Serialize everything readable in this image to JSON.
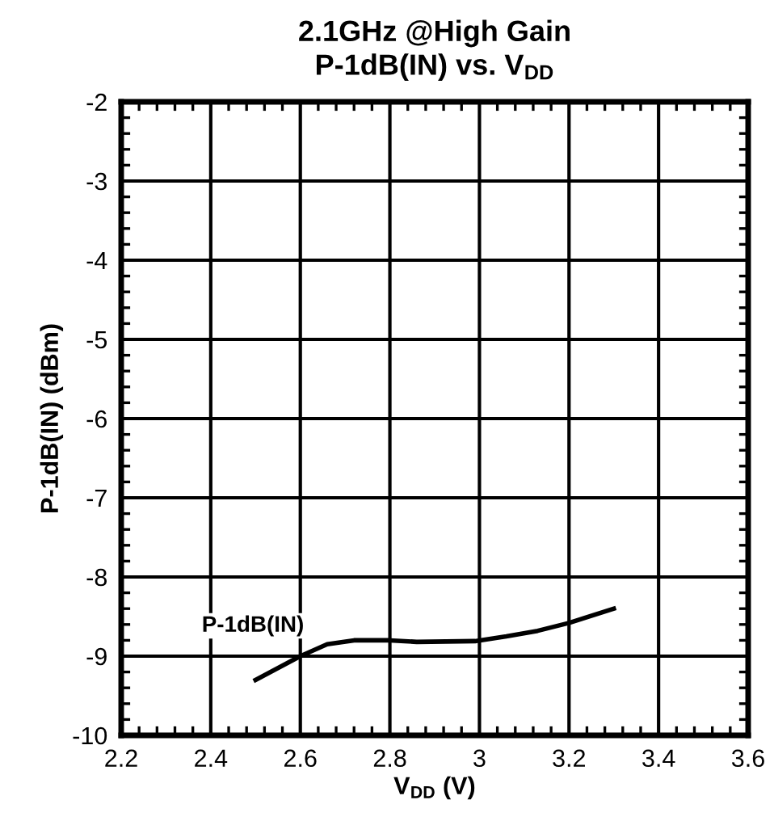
{
  "chart_data": {
    "type": "line",
    "title": "2.1GHz @High Gain\nP-1dB(IN) vs. V$_{DD}$",
    "xlabel": "V$_{DD}$ (V)",
    "ylabel": "P-1dB(IN) (dBm)",
    "series": [
      {
        "name": "P-1dB(IN)",
        "color": "#000000",
        "x": [
          2.5,
          2.6,
          2.66,
          2.72,
          2.8,
          2.86,
          2.99,
          3.06,
          3.13,
          3.2,
          3.3
        ],
        "values": [
          -9.3,
          -9.0,
          -8.85,
          -8.8,
          -8.8,
          -8.82,
          -8.81,
          -8.75,
          -8.68,
          -8.58,
          -8.4
        ]
      }
    ],
    "xlim": [
      2.2,
      3.6
    ],
    "xticks": [
      2.2,
      2.4,
      2.6,
      2.8,
      3,
      3.2,
      3.4,
      3.6
    ],
    "ylim": [
      -10,
      -2
    ],
    "yticks": [
      -10,
      -9,
      -8,
      -7,
      -6,
      -5,
      -4,
      -3,
      -2
    ],
    "grid": true,
    "legend": false,
    "marker": "none",
    "line_style": "solid"
  }
}
